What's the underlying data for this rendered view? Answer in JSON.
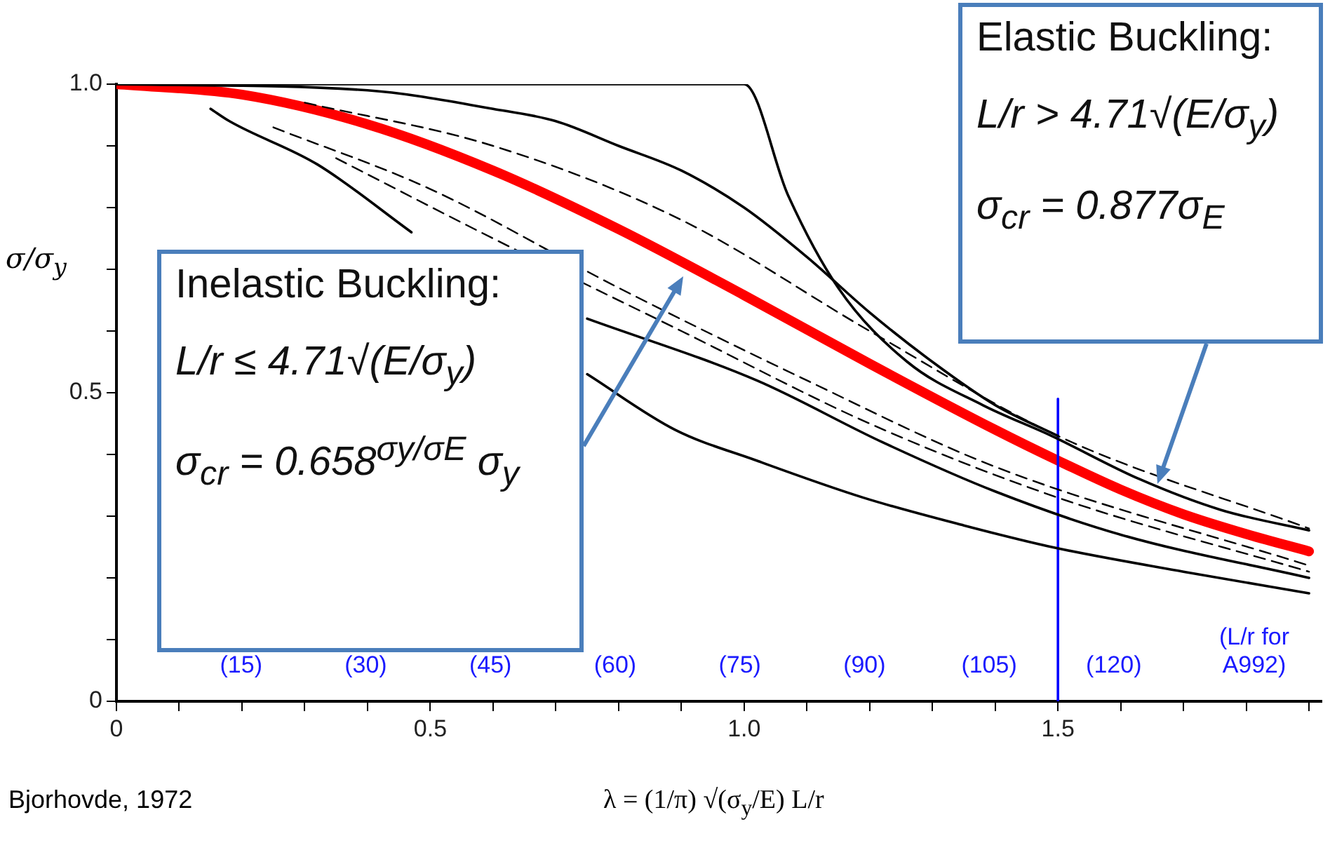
{
  "chart_data": {
    "type": "line",
    "xlabel": "λ = (1/π) √(σ$_{y}$/E) L/r",
    "ylabel": "σ/σ$_{y}$",
    "xlim": [
      0,
      1.92
    ],
    "ylim": [
      0,
      1.0
    ],
    "xticks": [
      0,
      {
        "value": 0.1,
        "label": null
      },
      {
        "value": 0.2,
        "label": null
      },
      {
        "value": 0.3,
        "label": null
      },
      {
        "value": 0.4,
        "label": null
      },
      0.5,
      {
        "value": 0.6,
        "label": null
      },
      {
        "value": 0.7,
        "label": null
      },
      {
        "value": 0.8,
        "label": null
      },
      {
        "value": 0.9,
        "label": null
      },
      {
        "value": 1.0,
        "label": "1.0"
      },
      {
        "value": 1.1,
        "label": null
      },
      {
        "value": 1.2,
        "label": null
      },
      {
        "value": 1.3,
        "label": null
      },
      {
        "value": 1.4,
        "label": null
      },
      1.5,
      {
        "value": 1.6,
        "label": null
      },
      {
        "value": 1.7,
        "label": null
      },
      {
        "value": 1.8,
        "label": null
      },
      {
        "value": 1.9,
        "label": null
      }
    ],
    "yticks": [
      0,
      {
        "value": 0.1,
        "label": null
      },
      {
        "value": 0.2,
        "label": null
      },
      {
        "value": 0.3,
        "label": null
      },
      {
        "value": 0.4,
        "label": null
      },
      0.5,
      {
        "value": 0.6,
        "label": null
      },
      {
        "value": 0.7,
        "label": null
      },
      {
        "value": 0.8,
        "label": null
      },
      {
        "value": 0.9,
        "label": null
      },
      {
        "value": 1.0,
        "label": "1.0"
      }
    ],
    "x2label": "(L/r for A992)",
    "x2lim": [
      0,
      145
    ],
    "x2ticks": [
      {
        "value": 15,
        "label": "(15)"
      },
      {
        "value": 30,
        "label": "(30)"
      },
      {
        "value": 45,
        "label": "(45)"
      },
      {
        "value": 60,
        "label": "(60)"
      },
      {
        "value": 75,
        "label": "(75)"
      },
      {
        "value": 90,
        "label": "(90)"
      },
      {
        "value": 105,
        "label": "(105)"
      },
      {
        "value": 120,
        "label": "(120)"
      }
    ],
    "marker": "none",
    "series": [
      {
        "color": "#000000",
        "x": [
          0,
          1.0,
          1.07,
          1.15,
          1.26,
          1.38,
          1.49,
          1.63,
          1.76,
          1.9
        ],
        "values": [
          1,
          1,
          0.82,
          0.67,
          0.55,
          0.48,
          0.43,
          0.36,
          0.31,
          0.277
        ]
      },
      {
        "color": "#000000",
        "x": [
          0,
          0.4,
          0.6,
          0.7,
          0.8,
          0.9,
          1.0,
          1.1,
          1.2,
          1.3,
          1.4,
          1.5
        ],
        "values": [
          1,
          0.99,
          0.96,
          0.94,
          0.9,
          0.86,
          0.8,
          0.72,
          0.63,
          0.55,
          0.48,
          0.43
        ]
      },
      {
        "color": "#000000",
        "x": [
          0.15,
          0.18,
          0.32,
          0.47,
          0.6,
          0.75,
          0.89,
          1.02,
          1.19,
          1.35,
          1.49,
          1.7,
          1.9
        ],
        "values": [
          0.96,
          0.94,
          0.87,
          0.76,
          null,
          0.53,
          0.44,
          0.39,
          0.33,
          0.285,
          0.25,
          0.21,
          0.175
        ]
      },
      {
        "color": "#000000",
        "x": [
          0.75,
          1.02,
          1.22,
          1.4,
          1.6,
          1.9
        ],
        "values": [
          0.62,
          0.52,
          0.42,
          0.34,
          0.27,
          0.2
        ]
      },
      {
        "color": "#000000",
        "line_style": "dashed",
        "x": [
          0.3,
          0.6,
          0.9,
          1.2,
          1.5,
          1.9
        ],
        "values": [
          0.97,
          0.9,
          0.78,
          0.6,
          0.43,
          0.28
        ]
      },
      {
        "color": "#000000",
        "line_style": "dashed",
        "x": [
          0.25,
          0.5,
          0.8,
          1.1,
          1.4,
          1.9
        ],
        "values": [
          0.93,
          0.83,
          0.67,
          0.52,
          0.38,
          0.22
        ]
      },
      {
        "color": "#000000",
        "line_style": "dashed",
        "x": [
          0.35,
          0.6,
          0.9,
          1.2,
          1.5,
          1.9
        ],
        "values": [
          0.88,
          0.75,
          0.6,
          0.45,
          0.33,
          0.21
        ]
      },
      {
        "color": "#0000ff",
        "x": [
          1.5,
          1.5
        ],
        "values": [
          0,
          0.49
        ]
      },
      {
        "color": "#ff0000",
        "x": [
          0,
          0.2,
          0.4,
          0.6,
          0.8,
          1.0,
          1.2,
          1.4,
          1.5,
          1.6,
          1.7,
          1.8,
          1.9
        ],
        "values": [
          1,
          0.983,
          0.935,
          0.86,
          0.765,
          0.658,
          0.547,
          0.44,
          0.39,
          0.343,
          0.303,
          0.271,
          0.243
        ]
      }
    ],
    "annotations": [
      "Bjorhovde, 1972",
      "Inelastic Buckling:",
      "L/r ≤ 4.71√(E/σ$_{y}$)",
      "σ$_{cr}$ = 0.658$^{σy/σE}$ σ$_{y}$",
      "Elastic Buckling:",
      "L/r > 4.71√(E/σ$_{y}$)",
      "σ$_{cr}$ = 0.877σ$_{E}$"
    ]
  }
}
